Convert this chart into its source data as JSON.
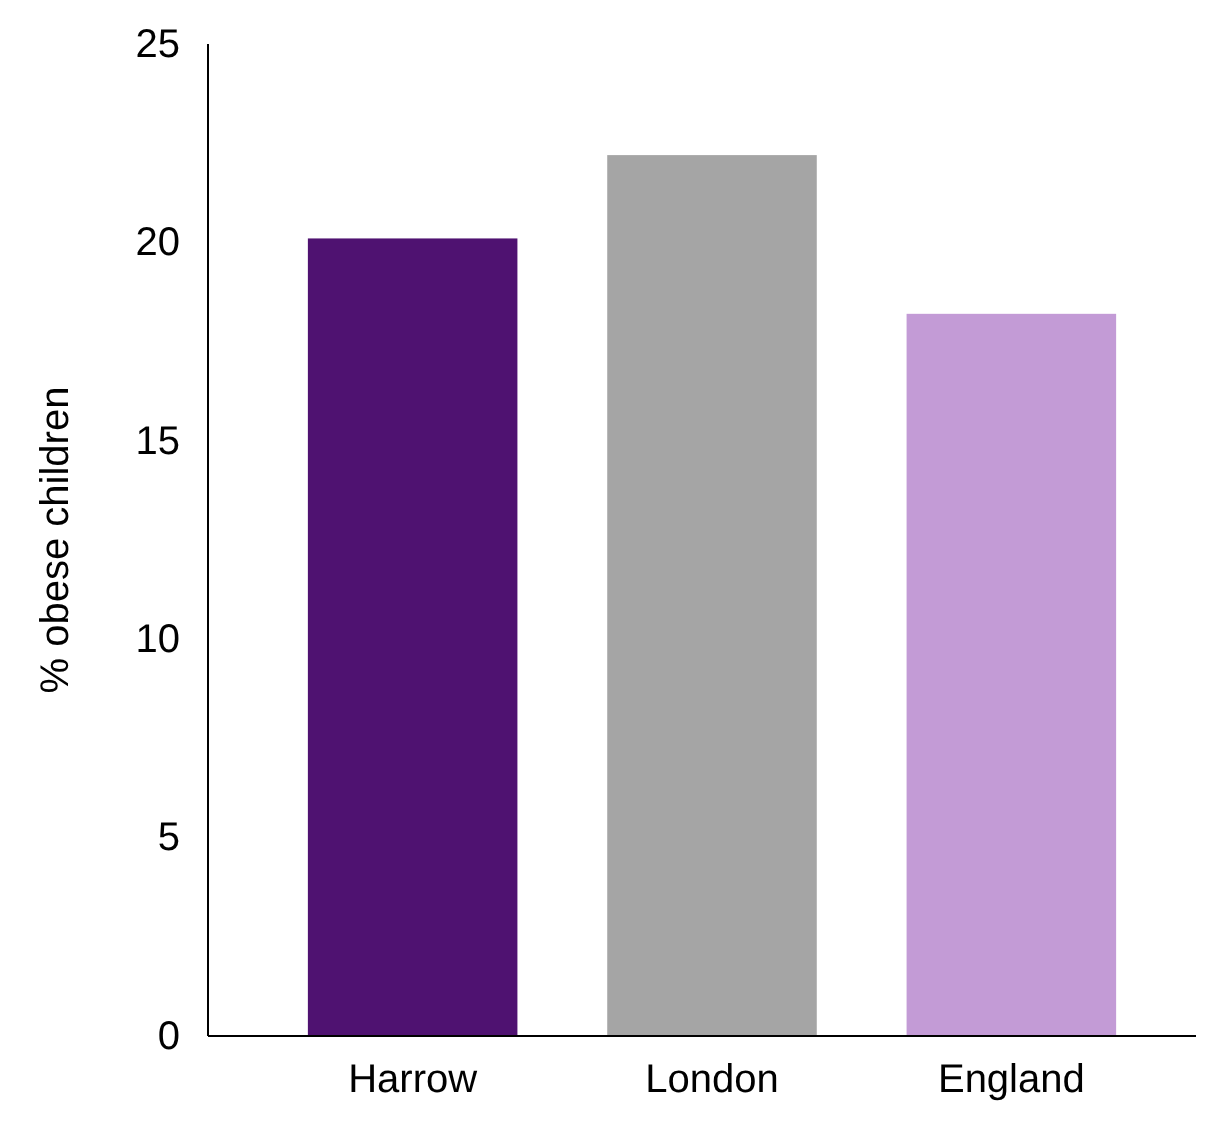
{
  "chart_data": {
    "type": "bar",
    "ylabel": "% obese children",
    "categories": [
      "Harrow",
      "London",
      "England"
    ],
    "values": [
      20.1,
      22.2,
      18.2
    ],
    "colors": [
      "#4f1271",
      "#a5a5a5",
      "#c39bd6"
    ],
    "ylim": [
      0,
      25
    ],
    "yticks": [
      0,
      5,
      10,
      15,
      20,
      25
    ],
    "grid": false
  }
}
